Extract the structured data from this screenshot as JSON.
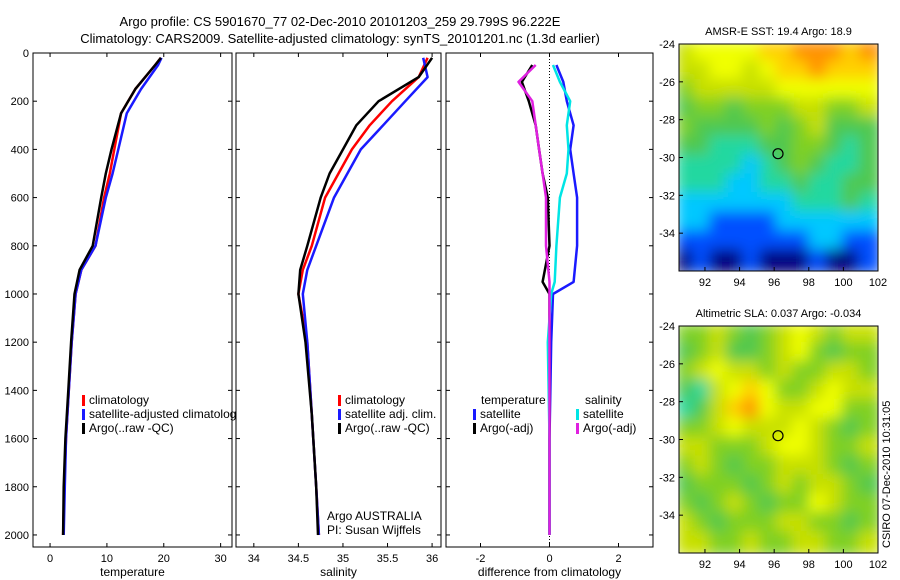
{
  "titles": {
    "line1": "Argo profile: CS 5901670_77 02-Dec-2010 20101203_259 29.799S 96.222E",
    "line2": "Climatology: CARS2009. Satellite-adjusted climatology: synTS_20101201.nc (1.3d earlier)"
  },
  "side_stamp": "CSIRO 07-Dec-2010 10:31:05",
  "colors": {
    "red": "#ff0000",
    "blue": "#1a1aff",
    "black": "#000000",
    "cyan": "#00e5e5",
    "magenta": "#e020e0"
  },
  "chart_data": [
    {
      "type": "line",
      "xlabel": "temperature",
      "ylabel": "",
      "xlim": [
        -3,
        32
      ],
      "ylim": [
        2050,
        0
      ],
      "x_ticks": [
        0,
        10,
        20,
        30
      ],
      "y_ticks": [
        0,
        200,
        400,
        600,
        800,
        1000,
        1200,
        1400,
        1600,
        1800,
        2000
      ],
      "legend": {
        "placement": "bottom-left",
        "entries": [
          "climatology",
          "satellite-adjusted climatology",
          "Argo(..raw -QC)"
        ]
      },
      "series": [
        {
          "name": "climatology",
          "color": "red",
          "x": [
            19.5,
            18.5,
            15,
            12.5,
            11.3,
            10.5,
            9.5,
            8,
            5.5,
            4.5,
            3.8,
            3.3,
            2.8,
            2.5,
            2.3
          ],
          "y": [
            20,
            50,
            150,
            250,
            400,
            500,
            600,
            800,
            900,
            1000,
            1200,
            1400,
            1600,
            1800,
            2000
          ]
        },
        {
          "name": "satellite-adjusted climatology",
          "color": "blue",
          "x": [
            19.6,
            19,
            16,
            13.5,
            12,
            11,
            9.8,
            8,
            5.5,
            4.5,
            3.8,
            3.3,
            2.8,
            2.6,
            2.4
          ],
          "y": [
            20,
            50,
            150,
            250,
            400,
            500,
            600,
            800,
            900,
            1000,
            1200,
            1400,
            1600,
            1800,
            2000
          ]
        },
        {
          "name": "Argo(..raw -QC)",
          "color": "black",
          "x": [
            19.5,
            18.5,
            15,
            12.5,
            10.8,
            9.8,
            9,
            7.5,
            5.2,
            4.3,
            3.7,
            3.2,
            2.7,
            2.4,
            2.3
          ],
          "y": [
            20,
            50,
            150,
            250,
            400,
            500,
            600,
            800,
            900,
            1000,
            1200,
            1400,
            1600,
            1800,
            2000
          ]
        }
      ]
    },
    {
      "type": "line",
      "xlabel": "salinity",
      "ylabel": "",
      "xlim": [
        33.8,
        36.1
      ],
      "ylim": [
        2050,
        0
      ],
      "x_ticks": [
        34,
        34.5,
        35,
        35.5,
        36
      ],
      "x_tick_labels": [
        "34",
        "34.5",
        "35",
        "35.5",
        "36"
      ],
      "legend": {
        "placement": "bottom-left",
        "entries": [
          "climatology",
          "satellite adj. clim.",
          "Argo(..raw -QC)"
        ]
      },
      "annotation": [
        "Argo AUSTRALIA",
        "PI: Susan Wijffels"
      ],
      "series": [
        {
          "name": "climatology",
          "color": "red",
          "x": [
            35.95,
            35.85,
            35.55,
            35.3,
            35.1,
            34.95,
            34.8,
            34.65,
            34.55,
            34.5,
            34.6,
            34.65,
            34.7,
            34.73
          ],
          "y": [
            20,
            100,
            200,
            300,
            400,
            500,
            600,
            800,
            900,
            1000,
            1200,
            1500,
            1800,
            2000
          ]
        },
        {
          "name": "satellite adj. clim.",
          "color": "blue",
          "x": [
            35.9,
            35.95,
            35.7,
            35.45,
            35.2,
            35.05,
            34.9,
            34.7,
            34.6,
            34.55,
            34.6,
            34.65,
            34.7,
            34.73
          ],
          "y": [
            20,
            100,
            200,
            300,
            400,
            500,
            600,
            800,
            900,
            1000,
            1200,
            1500,
            1800,
            2000
          ]
        },
        {
          "name": "Argo(..raw -QC)",
          "color": "black",
          "x": [
            36,
            35.85,
            35.4,
            35.15,
            35,
            34.85,
            34.75,
            34.6,
            34.52,
            34.5,
            34.58,
            34.65,
            34.7,
            34.72
          ],
          "y": [
            20,
            100,
            200,
            300,
            400,
            500,
            600,
            800,
            900,
            1000,
            1200,
            1500,
            1800,
            2000
          ]
        }
      ]
    },
    {
      "type": "line",
      "xlabel": "difference from climatology",
      "ylabel": "",
      "xlim": [
        -3,
        3
      ],
      "ylim": [
        2050,
        0
      ],
      "x_ticks": [
        -2,
        0,
        2
      ],
      "zero_line": true,
      "legend": {
        "placement": "bottom-center",
        "headers": [
          "temperature",
          "salinity"
        ],
        "entries": [
          "satellite",
          "Argo(-adj)",
          "satellite",
          "Argo(-adj)"
        ]
      },
      "series": [
        {
          "name": "temperature satellite",
          "color": "blue",
          "x": [
            0.2,
            0.4,
            0.5,
            0.7,
            0.6,
            0.7,
            0.8,
            0.8,
            0.7,
            0.1,
            0.05,
            0,
            0
          ],
          "y": [
            50,
            120,
            200,
            300,
            400,
            500,
            600,
            800,
            950,
            1000,
            1200,
            1600,
            2000
          ]
        },
        {
          "name": "temperature Argo(-adj)",
          "color": "black",
          "x": [
            -0.5,
            -0.8,
            -0.6,
            -0.4,
            -0.3,
            -0.2,
            -0.05,
            0,
            -0.2,
            0,
            0,
            0,
            0
          ],
          "y": [
            50,
            120,
            200,
            300,
            400,
            500,
            600,
            800,
            950,
            1000,
            1200,
            1600,
            2000
          ]
        },
        {
          "name": "salinity satellite",
          "color": "cyan",
          "x": [
            0.1,
            0.3,
            0.6,
            0.5,
            0.55,
            0.5,
            0.3,
            0.2,
            0.15,
            0.05,
            -0.05,
            0,
            0
          ],
          "y": [
            50,
            120,
            200,
            300,
            400,
            500,
            600,
            800,
            950,
            1000,
            1200,
            1600,
            2000
          ]
        },
        {
          "name": "salinity Argo(-adj)",
          "color": "magenta",
          "x": [
            -0.4,
            -0.9,
            -0.5,
            -0.4,
            -0.3,
            -0.2,
            -0.1,
            -0.1,
            0,
            0,
            0,
            0,
            0
          ],
          "y": [
            50,
            120,
            200,
            300,
            400,
            500,
            600,
            800,
            950,
            1000,
            1200,
            1600,
            2000
          ]
        }
      ]
    },
    {
      "type": "heatmap",
      "title": "AMSR-E SST: 19.4 Argo: 18.9",
      "xlim": [
        90.5,
        102
      ],
      "ylim": [
        -36,
        -24
      ],
      "x_ticks": [
        92,
        94,
        96,
        98,
        100,
        102
      ],
      "y_ticks": [
        -24,
        -26,
        -28,
        -30,
        -32,
        -34
      ],
      "marker": {
        "x": 96.222,
        "y": -29.799
      },
      "palette": [
        "#00007f",
        "#0050ff",
        "#00c8ff",
        "#20d8a0",
        "#50c850",
        "#80d020",
        "#c8e000",
        "#f0ff00",
        "#ffd000",
        "#ff9000"
      ],
      "grid": [
        [
          6,
          7,
          7,
          7,
          7,
          8,
          8,
          9,
          9,
          9,
          8,
          9
        ],
        [
          6,
          6,
          7,
          7,
          6,
          7,
          8,
          8,
          9,
          8,
          8,
          8
        ],
        [
          5,
          6,
          6,
          6,
          6,
          6,
          7,
          7,
          7,
          7,
          7,
          7
        ],
        [
          4,
          5,
          5,
          4,
          5,
          5,
          5,
          6,
          6,
          5,
          5,
          6
        ],
        [
          5,
          4,
          4,
          4,
          4,
          5,
          4,
          5,
          6,
          4,
          4,
          4
        ],
        [
          4,
          4,
          3,
          3,
          3,
          4,
          4,
          5,
          5,
          4,
          3,
          4
        ],
        [
          3,
          3,
          3,
          3,
          2,
          3,
          4,
          5,
          4,
          3,
          3,
          4
        ],
        [
          3,
          3,
          3,
          2,
          2,
          3,
          3,
          4,
          3,
          3,
          4,
          4
        ],
        [
          2,
          2,
          2,
          2,
          2,
          2,
          2,
          3,
          3,
          3,
          4,
          3
        ],
        [
          2,
          2,
          1,
          1,
          1,
          1,
          2,
          2,
          2,
          2,
          2,
          2
        ],
        [
          1,
          1,
          1,
          1,
          1,
          1,
          1,
          1,
          2,
          2,
          1,
          1
        ],
        [
          0,
          1,
          0,
          0,
          1,
          0,
          0,
          0,
          1,
          0,
          0,
          1
        ]
      ]
    },
    {
      "type": "heatmap",
      "title": "Altimetric SLA: 0.037 Argo: -0.034",
      "xlim": [
        90.5,
        102
      ],
      "ylim": [
        -36,
        -24
      ],
      "x_ticks": [
        92,
        94,
        96,
        98,
        100,
        102
      ],
      "y_ticks": [
        -24,
        -26,
        -28,
        -30,
        -32,
        -34
      ],
      "marker": {
        "x": 96.222,
        "y": -29.799
      },
      "palette": [
        "#00007f",
        "#0050ff",
        "#00c8ff",
        "#20d8a0",
        "#50c850",
        "#80d020",
        "#c8e000",
        "#f0ff00",
        "#ffd000",
        "#ff9000"
      ],
      "grid": [
        [
          5,
          5,
          6,
          5,
          4,
          5,
          6,
          7,
          6,
          5,
          6,
          6
        ],
        [
          4,
          5,
          6,
          4,
          4,
          5,
          6,
          7,
          5,
          4,
          5,
          5
        ],
        [
          5,
          6,
          7,
          6,
          6,
          5,
          6,
          5,
          5,
          6,
          6,
          5
        ],
        [
          4,
          3,
          6,
          7,
          8,
          7,
          5,
          5,
          6,
          7,
          6,
          6
        ],
        [
          3,
          4,
          6,
          8,
          9,
          7,
          6,
          6,
          7,
          7,
          5,
          5
        ],
        [
          5,
          5,
          6,
          7,
          6,
          6,
          6,
          7,
          6,
          5,
          4,
          5
        ],
        [
          6,
          6,
          5,
          5,
          5,
          6,
          7,
          7,
          6,
          5,
          5,
          6
        ],
        [
          5,
          6,
          5,
          4,
          5,
          5,
          6,
          6,
          6,
          5,
          4,
          5
        ],
        [
          4,
          5,
          5,
          5,
          4,
          5,
          6,
          5,
          6,
          6,
          5,
          4
        ],
        [
          5,
          4,
          5,
          6,
          5,
          4,
          5,
          5,
          7,
          6,
          5,
          5
        ],
        [
          6,
          5,
          4,
          5,
          5,
          5,
          6,
          6,
          5,
          5,
          4,
          5
        ],
        [
          6,
          6,
          5,
          5,
          6,
          5,
          5,
          6,
          6,
          5,
          5,
          6
        ]
      ]
    }
  ]
}
